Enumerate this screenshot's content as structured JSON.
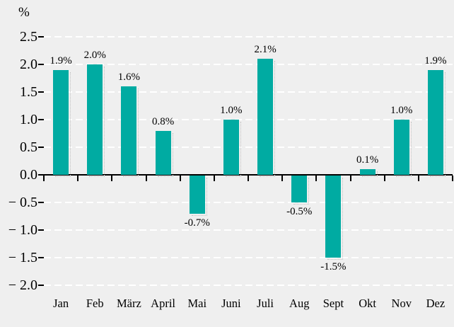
{
  "chart_data": {
    "type": "bar",
    "title": "",
    "xlabel": "",
    "ylabel": "%",
    "categories": [
      "Jan",
      "Feb",
      "März",
      "April",
      "Mai",
      "Juni",
      "Juli",
      "Aug",
      "Sept",
      "Okt",
      "Nov",
      "Dez"
    ],
    "values": [
      1.9,
      2.0,
      1.6,
      0.8,
      -0.7,
      1.0,
      2.1,
      -0.5,
      -1.5,
      0.1,
      1.0,
      1.9
    ],
    "value_labels": [
      "1.9%",
      "2.0%",
      "1.6%",
      "0.8%",
      "-0.7%",
      "1.0%",
      "2.1%",
      "-0.5%",
      "-1.5%",
      "0.1%",
      "1.0%",
      "1.9%"
    ],
    "y_ticks": [
      {
        "value": 2.5,
        "label": "2.5"
      },
      {
        "value": 2.0,
        "label": "2.0"
      },
      {
        "value": 1.5,
        "label": "1.5"
      },
      {
        "value": 1.0,
        "label": "1.0"
      },
      {
        "value": 0.5,
        "label": "0.5"
      },
      {
        "value": 0.0,
        "label": "0.0"
      },
      {
        "value": -0.5,
        "label": "− 0.5"
      },
      {
        "value": -1.0,
        "label": "− 1.0"
      },
      {
        "value": -1.5,
        "label": "− 1.5"
      },
      {
        "value": -2.0,
        "label": "− 2.0"
      }
    ],
    "ylim": [
      -2.0,
      2.5
    ],
    "grid": "horizontal-dashed-white",
    "legend": "none",
    "colors": {
      "bar": "#00aba2",
      "background": "#efefef",
      "gridline": "#ffffff",
      "axis": "#000000",
      "text": "#000000"
    }
  }
}
